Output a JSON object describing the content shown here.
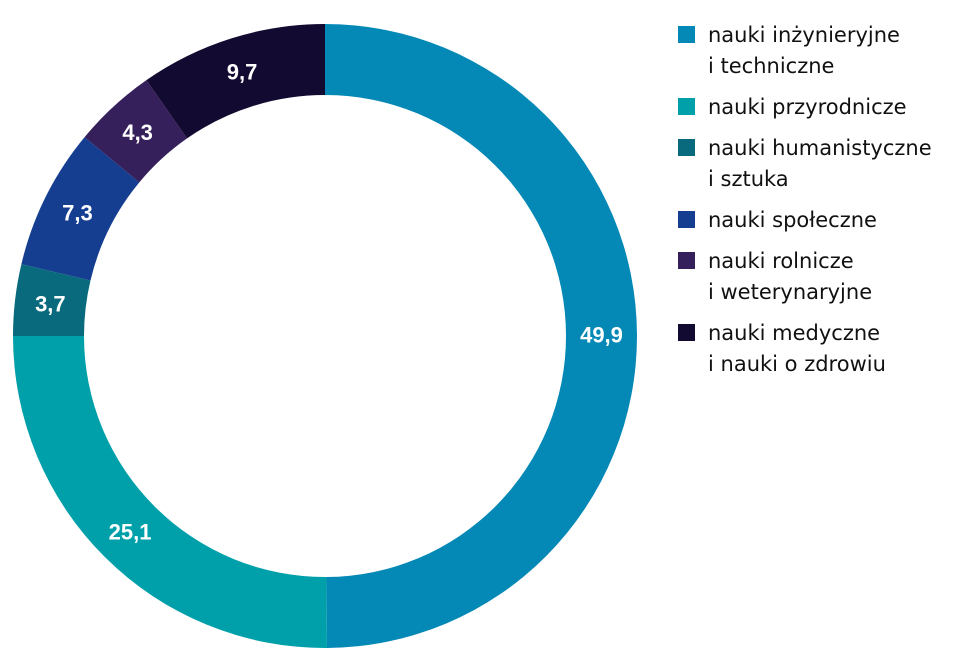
{
  "chart_data": {
    "type": "pie",
    "donut": true,
    "title": "",
    "legend_position": "right",
    "start": "top, clockwise",
    "slices": [
      {
        "label_lines": [
          "nauki inżynieryjne",
          "i techniczne"
        ],
        "value": 49.9,
        "display": "49,9",
        "color": "#0488b6"
      },
      {
        "label_lines": [
          "nauki przyrodnicze"
        ],
        "value": 25.1,
        "display": "25,1",
        "color": "#00a0aa"
      },
      {
        "label_lines": [
          "nauki humanistyczne",
          "i sztuka"
        ],
        "value": 3.7,
        "display": "3,7",
        "color": "#086a7c"
      },
      {
        "label_lines": [
          "nauki społeczne"
        ],
        "value": 7.3,
        "display": "7,3",
        "color": "#153e91"
      },
      {
        "label_lines": [
          "nauki rolnicze",
          "i weterynaryjne"
        ],
        "value": 4.3,
        "display": "4,3",
        "color": "#35205c"
      },
      {
        "label_lines": [
          "nauki medyczne",
          "i nauki o zdrowiu"
        ],
        "value": 9.7,
        "display": "9,7",
        "color": "#120a30"
      }
    ]
  }
}
